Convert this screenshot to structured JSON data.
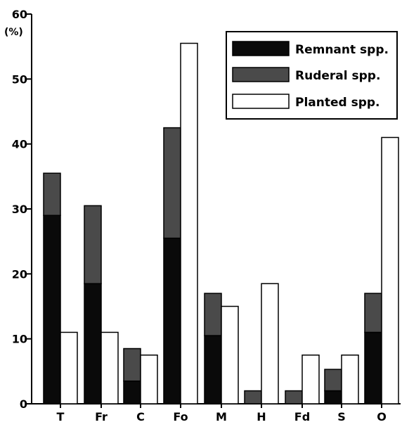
{
  "chart_data": {
    "type": "bar",
    "y_unit": "(%)",
    "ylim": [
      0,
      60
    ],
    "yticks": [
      0,
      10,
      20,
      30,
      40,
      50,
      60
    ],
    "categories": [
      "T",
      "Fr",
      "C",
      "Fo",
      "M",
      "H",
      "Fd",
      "S",
      "O"
    ],
    "stacked_columns": [
      {
        "series": [
          {
            "name": "Remnant spp.",
            "values": [
              29,
              18.5,
              3.5,
              25.5,
              10.5,
              0,
              0,
              2,
              11
            ]
          },
          {
            "name": "Ruderal spp.",
            "values": [
              6.5,
              12,
              5,
              17,
              6.5,
              2,
              2,
              3.3,
              6
            ]
          }
        ]
      }
    ],
    "series": [
      {
        "name": "Remnant spp.",
        "values": [
          29,
          18.5,
          3.5,
          25.5,
          10.5,
          0,
          0,
          2,
          11
        ],
        "color": "#0a0a0a"
      },
      {
        "name": "Ruderal spp.",
        "values": [
          6.5,
          12,
          5,
          17,
          6.5,
          2,
          2,
          3.3,
          6
        ],
        "color": "#4a4a4a"
      },
      {
        "name": "Planted spp.",
        "values": [
          11,
          11,
          7.5,
          55.5,
          15,
          18.5,
          7.5,
          7.5,
          41
        ],
        "color": "#ffffff"
      }
    ],
    "legend": {
      "position": "top-right",
      "entries": [
        "Remnant spp.",
        "Ruderal spp.",
        "Planted spp."
      ]
    },
    "grid": false
  }
}
